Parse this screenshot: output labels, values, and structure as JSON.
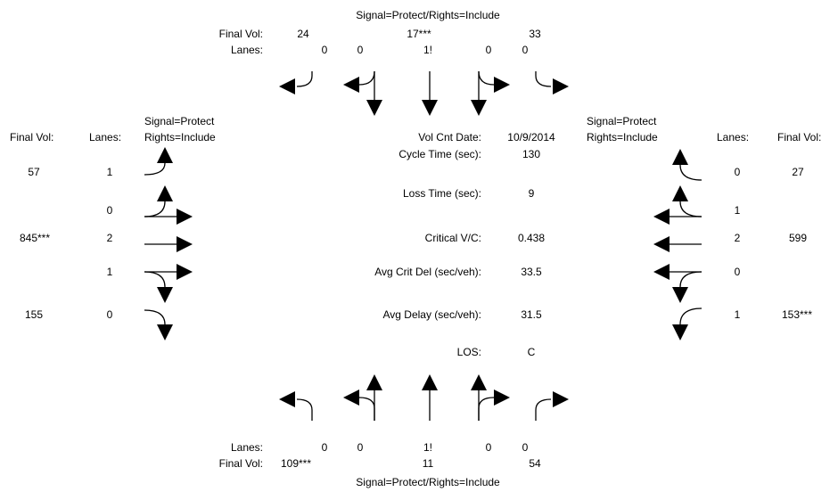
{
  "north": {
    "signal": "Signal=Protect/Rights=Include",
    "final_vol_label": "Final Vol:",
    "lanes_label": "Lanes:",
    "vol_left": "24",
    "vol_thru": "17***",
    "vol_right": "33",
    "lane_1": "0",
    "lane_2": "0",
    "lane_3": "1!",
    "lane_4": "0",
    "lane_5": "0"
  },
  "south": {
    "signal": "Signal=Protect/Rights=Include",
    "final_vol_label": "Final Vol:",
    "lanes_label": "Lanes:",
    "vol_left": "109***",
    "vol_thru": "11",
    "vol_right": "54",
    "lane_1": "0",
    "lane_2": "0",
    "lane_3": "1!",
    "lane_4": "0",
    "lane_5": "0"
  },
  "west": {
    "final_vol_label": "Final Vol:",
    "lanes_label": "Lanes:",
    "signal_1": "Signal=Protect",
    "signal_2": "Rights=Include",
    "rows": [
      {
        "vol": "57",
        "lanes": "1"
      },
      {
        "vol": "",
        "lanes": "0"
      },
      {
        "vol": "845***",
        "lanes": "2"
      },
      {
        "vol": "",
        "lanes": "1"
      },
      {
        "vol": "155",
        "lanes": "0"
      }
    ]
  },
  "east": {
    "final_vol_label": "Final Vol:",
    "lanes_label": "Lanes:",
    "signal_1": "Signal=Protect",
    "signal_2": "Rights=Include",
    "rows": [
      {
        "vol": "27",
        "lanes": "0"
      },
      {
        "vol": "",
        "lanes": "1"
      },
      {
        "vol": "599",
        "lanes": "2"
      },
      {
        "vol": "",
        "lanes": "0"
      },
      {
        "vol": "153***",
        "lanes": "1"
      }
    ]
  },
  "summary": {
    "vol_cnt_date_label": "Vol Cnt Date:",
    "vol_cnt_date": "10/9/2014",
    "cycle_time_label": "Cycle Time (sec):",
    "cycle_time": "130",
    "loss_time_label": "Loss Time (sec):",
    "loss_time": "9",
    "critical_vc_label": "Critical V/C:",
    "critical_vc": "0.438",
    "avg_crit_del_label": "Avg Crit Del (sec/veh):",
    "avg_crit_del": "33.5",
    "avg_delay_label": "Avg Delay (sec/veh):",
    "avg_delay": "31.5",
    "los_label": "LOS:",
    "los": "C"
  }
}
